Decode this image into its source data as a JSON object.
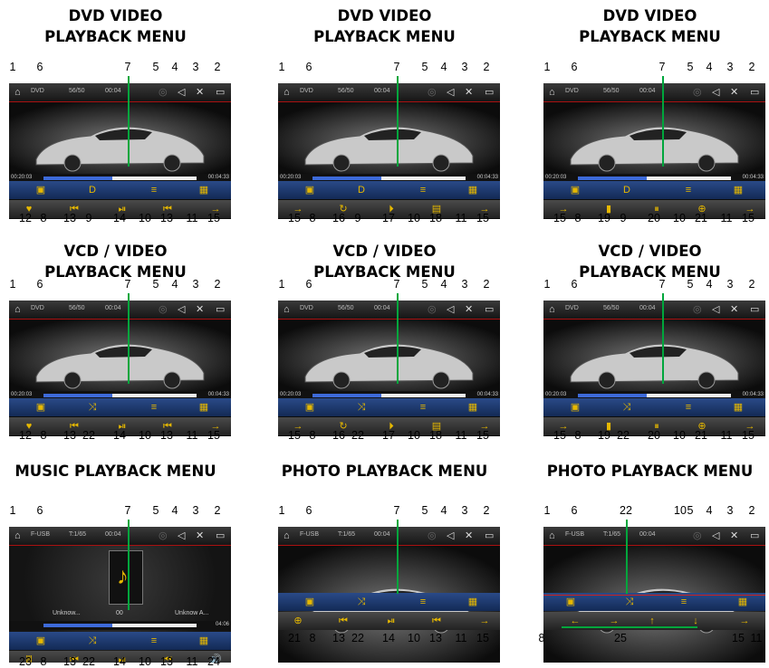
{
  "top_labels": [
    "1",
    "6",
    "7",
    "5",
    "4",
    "3",
    "2"
  ],
  "panels": [
    {
      "title": "DVD VIDEO\nPLAYBACK MENU",
      "source": "DVD",
      "counter": "56/50",
      "clock": "00:04",
      "time_left": "00:20:03",
      "time_right": "00:04:33",
      "bottom_labels": [
        "12",
        "8",
        "13",
        "9",
        "14",
        "10",
        "13",
        "11",
        "15"
      ]
    },
    {
      "title": "DVD  VIDEO\nPLAYBACK MENU",
      "source": "DVD",
      "counter": "56/50",
      "clock": "00:04",
      "time_left": "00:20:03",
      "time_right": "00:04:33",
      "bottom_labels": [
        "15",
        "8",
        "16",
        "9",
        "17",
        "10",
        "18",
        "11",
        "15"
      ]
    },
    {
      "title": "DVD VIDEO\nPLAYBACK MENU",
      "source": "DVD",
      "counter": "56/50",
      "clock": "00:04",
      "time_left": "00:20:03",
      "time_right": "00:04:33",
      "bottom_labels": [
        "15",
        "8",
        "19",
        "9",
        "20",
        "10",
        "21",
        "11",
        "15"
      ]
    },
    {
      "title": "VCD / VIDEO\nPLAYBACK MENU",
      "source": "DVD",
      "counter": "56/50",
      "clock": "00:04",
      "time_left": "00:20:03",
      "time_right": "00:04:33",
      "bottom_labels": [
        "12",
        "8",
        "13",
        "22",
        "14",
        "10",
        "13",
        "11",
        "15"
      ]
    },
    {
      "title": "VCD / VIDEO\nPLAYBACK MENU",
      "source": "DVD",
      "counter": "56/50",
      "clock": "00:04",
      "time_left": "00:20:03",
      "time_right": "00:04:33",
      "bottom_labels": [
        "15",
        "8",
        "16",
        "22",
        "17",
        "10",
        "18",
        "11",
        "15"
      ]
    },
    {
      "title": "VCD / VIDEO\nPLAYBACK MENU",
      "source": "DVD",
      "counter": "56/50",
      "clock": "00:04",
      "time_left": "00:20:03",
      "time_right": "00:04:33",
      "bottom_labels": [
        "15",
        "8",
        "19",
        "22",
        "20",
        "10",
        "21",
        "11",
        "15"
      ]
    },
    {
      "title": "MUSIC PLAYBACK MENU",
      "source": "F-USB",
      "counter": "T:1/65",
      "clock": "00:04",
      "time_left": "",
      "time_right": "04:06",
      "track1": "Unknow...",
      "track2": "00",
      "track3": "Unknow A...",
      "bottom_labels": [
        "23",
        "8",
        "13",
        "22",
        "14",
        "10",
        "13",
        "11",
        "24"
      ]
    },
    {
      "title": "PHOTO PLAYBACK MENU",
      "source": "F-USB",
      "counter": "T:1/65",
      "clock": "00:04",
      "bottom_labels": [
        "21",
        "8",
        "13",
        "22",
        "14",
        "10",
        "13",
        "11",
        "15"
      ]
    },
    {
      "title": "PHOTO PLAYBACK MENU",
      "source": "F-USB",
      "counter": "T:1/65",
      "clock": "00:04",
      "top_labels": [
        "1",
        "6",
        "22",
        "10",
        "5",
        "4",
        "3",
        "2"
      ],
      "bottom_labels": [
        "8",
        "25",
        "15",
        "11"
      ]
    }
  ],
  "icons": {
    "home": "home-icon",
    "disc": "disc-icon",
    "volume": "volume-icon",
    "settings": "settings-icon",
    "screen": "screen-icon"
  },
  "colors": {
    "accent": "#e6b800",
    "leader": "#00a63c",
    "progress": "#3d6ad9",
    "bar_blue": "#1e3c78"
  }
}
